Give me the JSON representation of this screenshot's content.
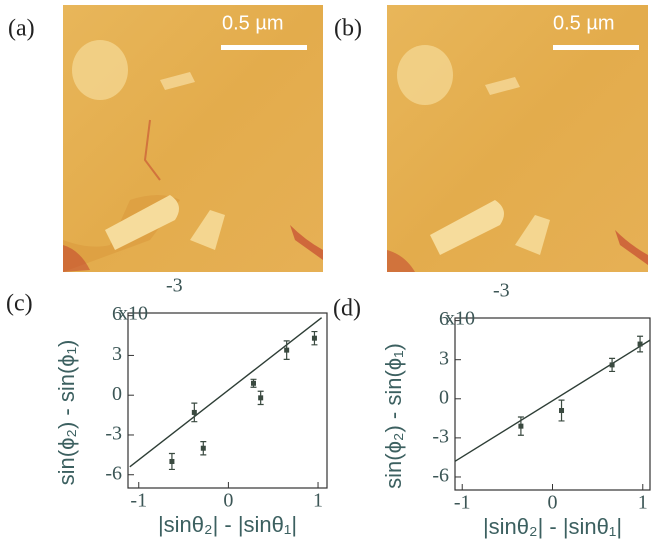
{
  "images": [
    {
      "label": "(a)",
      "scale_bar": "0.5 µm"
    },
    {
      "label": "(b)",
      "scale_bar": "0.5 µm"
    }
  ],
  "chart_data": [
    {
      "type": "scatter",
      "label": "(c)",
      "xlabel": "|sinθ₂| - |sinθ₁|",
      "ylabel": "sin(ϕ₂) - sin(ϕ₁)",
      "y_multiplier": "x10",
      "y_exponent": "-3",
      "color": "#3a4a40",
      "x": [
        -0.63,
        -0.38,
        -0.28,
        0.28,
        0.36,
        0.65,
        0.96
      ],
      "values": [
        -5.0,
        -1.3,
        -4.0,
        0.9,
        -0.2,
        3.4,
        4.3
      ],
      "errors": [
        0.6,
        0.7,
        0.5,
        0.3,
        0.5,
        0.7,
        0.5
      ],
      "fit": {
        "x": [
          -1.1,
          1.04
        ],
        "y": [
          -5.4,
          5.85
        ]
      },
      "xlim": [
        -1.12,
        1.1
      ],
      "ylim": [
        -7,
        6.2
      ],
      "xticks": [
        -1,
        0,
        1
      ],
      "yticks": [
        -6,
        -3,
        0,
        3,
        6
      ]
    },
    {
      "type": "scatter",
      "label": "(d)",
      "xlabel": "|sinθ₂| - |sinθ₁|",
      "ylabel": "sin(ϕ₂) - sin(ϕ₁)",
      "y_multiplier": "x10",
      "y_exponent": "-3",
      "color": "#3a4a40",
      "x": [
        -0.35,
        0.1,
        0.66,
        0.97
      ],
      "values": [
        -2.1,
        -0.9,
        2.6,
        4.2
      ],
      "errors": [
        0.7,
        0.8,
        0.5,
        0.6
      ],
      "fit": {
        "x": [
          -1.08,
          1.08
        ],
        "y": [
          -4.8,
          4.5
        ]
      },
      "xlim": [
        -1.08,
        1.08
      ],
      "ylim": [
        -7,
        6.2
      ],
      "xticks": [
        -1,
        0,
        1
      ],
      "yticks": [
        -6,
        -3,
        0,
        3,
        6
      ]
    }
  ]
}
